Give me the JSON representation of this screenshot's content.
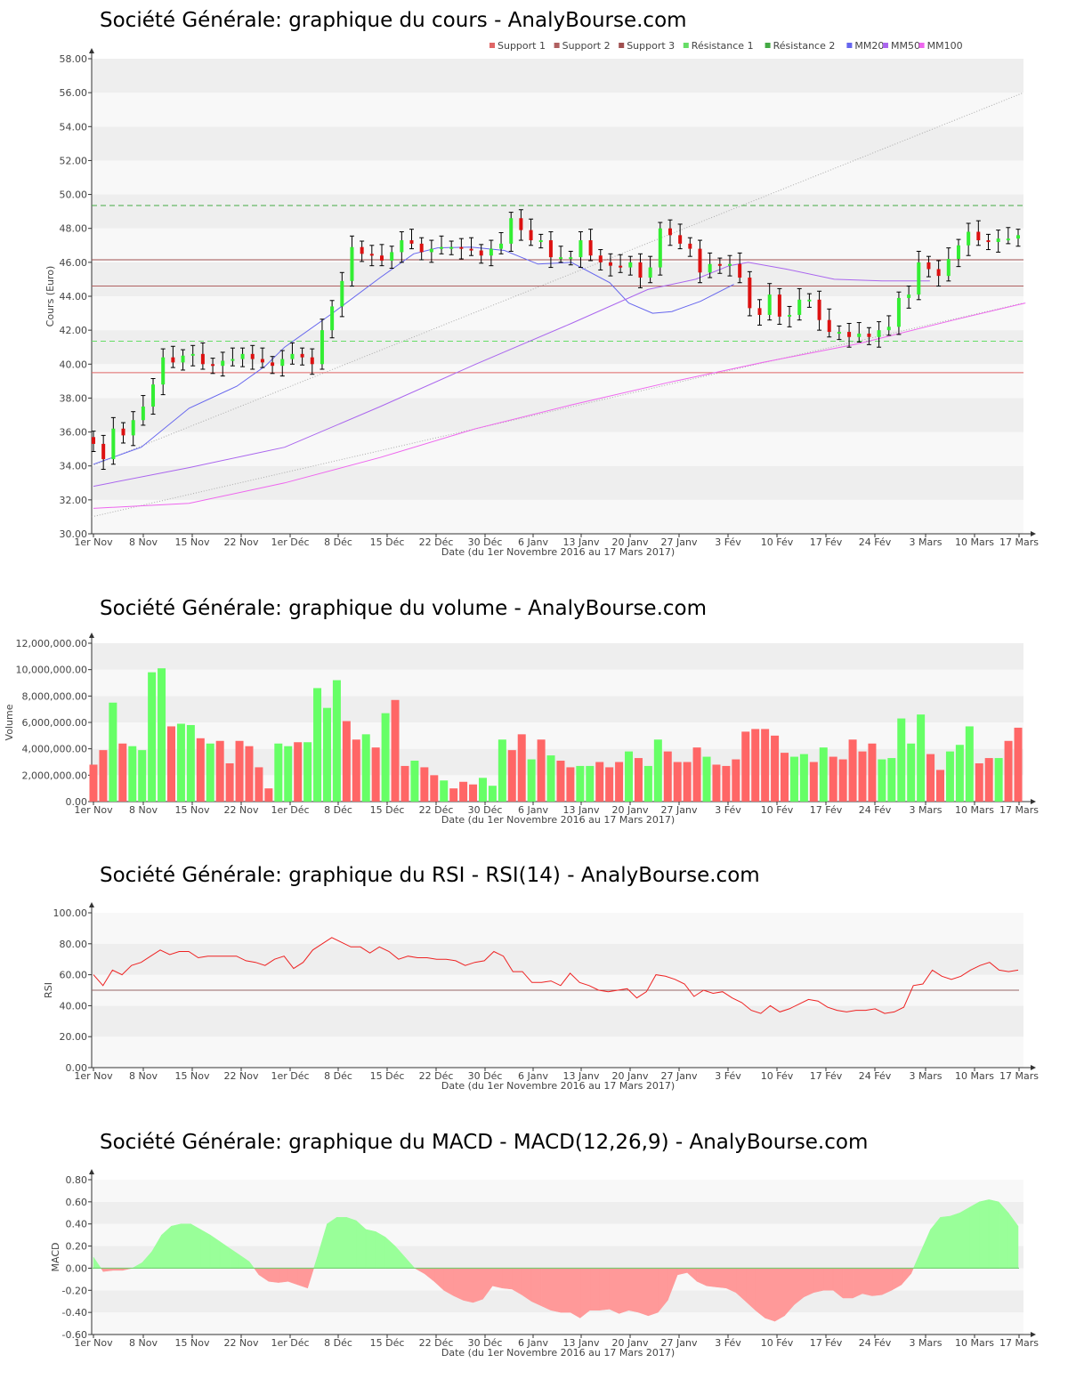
{
  "x_axis": {
    "tick_labels": [
      "1er Nov",
      "8 Nov",
      "15 Nov",
      "22 Nov",
      "1er Déc",
      "8 Déc",
      "15 Déc",
      "22 Déc",
      "30 Déc",
      "6 Janv",
      "13 Janv",
      "20 Janv",
      "27 Janv",
      "3 Fév",
      "10 Fév",
      "17 Fév",
      "24 Fév",
      "3 Mars",
      "10 Mars",
      "17 Mars"
    ],
    "label": "Date (du 1er Novembre 2016 au 17 Mars 2017)"
  },
  "chart_data": [
    {
      "type": "candlestick",
      "title": "Société Générale: graphique du cours - AnalyBourse.com",
      "ylabel": "Cours (Euro)",
      "ylim": [
        30,
        58
      ],
      "yticks": [
        "30.00",
        "32.00",
        "34.00",
        "36.00",
        "38.00",
        "40.00",
        "42.00",
        "44.00",
        "46.00",
        "48.00",
        "50.00",
        "52.00",
        "54.00",
        "56.00",
        "58.00"
      ],
      "legend": [
        {
          "name": "Support 1",
          "color": "#e06666"
        },
        {
          "name": "Support 2",
          "color": "#b06060"
        },
        {
          "name": "Support 3",
          "color": "#a05050"
        },
        {
          "name": "Résistance 1",
          "color": "#66dd66"
        },
        {
          "name": "Résistance 2",
          "color": "#44aa44"
        },
        {
          "name": "MM20",
          "color": "#6666ee"
        },
        {
          "name": "MM50",
          "color": "#aa66ee"
        },
        {
          "name": "MM100",
          "color": "#ee66ee"
        }
      ],
      "levels": {
        "support_1": 39.5,
        "support_2": 44.6,
        "support_3": 46.15,
        "resistance_1": 41.35,
        "resistance_2": 49.35
      },
      "trend_lines": [
        [
          34.0,
          56.0
        ],
        [
          31.0,
          43.6
        ]
      ],
      "closes": [
        35.3,
        34.4,
        36.2,
        35.8,
        36.7,
        37.5,
        38.8,
        40.4,
        40.1,
        40.5,
        40.6,
        40.0,
        39.9,
        40.2,
        40.3,
        40.6,
        40.3,
        40.1,
        39.9,
        40.3,
        40.6,
        40.4,
        40.0,
        42.0,
        43.4,
        44.9,
        46.9,
        46.5,
        46.4,
        46.1,
        46.6,
        47.3,
        47.1,
        46.6,
        46.8,
        46.9,
        46.9,
        46.8,
        46.7,
        46.4,
        46.8,
        47.1,
        48.6,
        47.9,
        47.3,
        47.3,
        46.3,
        46.3,
        46.3,
        47.3,
        46.4,
        46.0,
        45.8,
        45.7,
        46.0,
        45.1,
        45.7,
        48.0,
        47.6,
        47.1,
        46.8,
        45.4,
        45.9,
        45.8,
        45.9,
        45.1,
        43.3,
        42.9,
        44.1,
        42.8,
        42.9,
        43.8,
        43.8,
        42.6,
        41.9,
        41.9,
        41.6,
        41.8,
        41.6,
        42.0,
        42.2,
        43.9,
        44.1,
        46.0,
        45.6,
        45.2,
        46.2,
        47.0,
        47.8,
        47.3,
        47.2,
        47.4,
        47.4,
        47.6
      ],
      "ma": {
        "mm20": [
          [
            0,
            34.1
          ],
          [
            10,
            35.1
          ],
          [
            20,
            37.4
          ],
          [
            30,
            38.7
          ],
          [
            36,
            39.9
          ],
          [
            40,
            41.0
          ],
          [
            50,
            43.0
          ],
          [
            60,
            45.1
          ],
          [
            67,
            46.5
          ],
          [
            72,
            46.85
          ],
          [
            79,
            46.9
          ],
          [
            86,
            46.7
          ],
          [
            93,
            45.9
          ],
          [
            100,
            46.0
          ],
          [
            108,
            44.8
          ],
          [
            112,
            43.6
          ],
          [
            117,
            43.0
          ],
          [
            121,
            43.1
          ],
          [
            127,
            43.7
          ],
          [
            134,
            44.7
          ]
        ],
        "mm50": [
          [
            0,
            32.8
          ],
          [
            20,
            33.9
          ],
          [
            40,
            35.1
          ],
          [
            60,
            37.5
          ],
          [
            80,
            40.0
          ],
          [
            100,
            42.4
          ],
          [
            116,
            44.4
          ],
          [
            126,
            45.0
          ],
          [
            133,
            45.8
          ],
          [
            137,
            46.0
          ],
          [
            145,
            45.6
          ],
          [
            155,
            45.0
          ],
          [
            165,
            44.9
          ],
          [
            175,
            44.9
          ]
        ],
        "mm100": [
          [
            0,
            31.5
          ],
          [
            20,
            31.8
          ],
          [
            40,
            33.0
          ],
          [
            60,
            34.5
          ],
          [
            80,
            36.2
          ],
          [
            100,
            37.6
          ],
          [
            120,
            38.9
          ],
          [
            140,
            40.1
          ],
          [
            160,
            41.2
          ],
          [
            180,
            42.6
          ],
          [
            195,
            43.6
          ]
        ]
      }
    },
    {
      "type": "bar",
      "title": "Société Générale: graphique du volume - AnalyBourse.com",
      "ylabel": "Volume",
      "ylim": [
        0,
        12000000
      ],
      "yticks": [
        "0.00",
        "2,000,000.00",
        "4,000,000.00",
        "6,000,000.00",
        "8,000,000.00",
        "10,000,000.00",
        "12,000,000.00"
      ],
      "values": [
        2800000,
        3900000,
        7500000,
        4400000,
        4200000,
        3900000,
        9800000,
        10100000,
        5700000,
        5900000,
        5800000,
        4800000,
        4400000,
        4600000,
        2900000,
        4600000,
        4200000,
        2600000,
        1000000,
        4400000,
        4200000,
        4500000,
        4500000,
        8600000,
        7100000,
        9200000,
        6100000,
        4700000,
        5100000,
        4100000,
        6700000,
        7700000,
        2700000,
        3100000,
        2600000,
        2000000,
        1600000,
        1000000,
        1500000,
        1300000,
        1800000,
        1200000,
        4700000,
        3900000,
        5100000,
        3200000,
        4700000,
        3500000,
        3100000,
        2600000,
        2700000,
        2700000,
        3000000,
        2600000,
        3000000,
        3800000,
        3300000,
        2700000,
        4700000,
        3800000,
        3000000,
        3000000,
        4100000,
        3400000,
        2800000,
        2700000,
        3200000,
        5300000,
        5500000,
        5500000,
        5000000,
        3700000,
        3400000,
        3600000,
        3000000,
        4100000,
        3400000,
        3200000,
        4700000,
        3800000,
        4400000,
        3200000,
        3300000,
        6300000,
        4400000,
        6600000,
        3600000,
        2400000,
        3800000,
        4300000,
        5700000,
        2900000,
        3300000,
        3300000,
        4600000,
        5600000
      ],
      "colors": "r r g r g g g g r g g r g r r r r r r g g r g g g g r r g r g r r g r r g r r r g g g r r g r g r r g g r r r g r g g r r r r g r r r r r r r r g g r g r r r r r g g g g g r r g g g r r g r"
    },
    {
      "type": "line",
      "title": "Société Générale: graphique du RSI - RSI(14) - AnalyBourse.com",
      "ylabel": "RSI",
      "ylim": [
        0,
        100
      ],
      "yticks": [
        "0.00",
        "20.00",
        "40.00",
        "60.00",
        "80.00",
        "100.00"
      ],
      "reference": 50,
      "values": [
        60,
        53,
        63,
        60,
        66,
        68,
        72,
        76,
        73,
        75,
        75,
        71,
        72,
        72,
        72,
        72,
        69,
        68,
        66,
        70,
        72,
        64,
        68,
        76,
        80,
        84,
        81,
        78,
        78,
        74,
        78,
        75,
        70,
        72,
        71,
        71,
        70,
        70,
        69,
        66,
        68,
        69,
        75,
        72,
        62,
        62,
        55,
        55,
        56,
        53,
        61,
        55,
        53,
        50,
        49,
        50,
        51,
        45,
        49,
        60,
        59,
        57,
        54,
        46,
        50,
        48,
        49,
        45,
        42,
        37,
        35,
        40,
        36,
        38,
        41,
        44,
        43,
        39,
        37,
        36,
        37,
        37,
        38,
        35,
        36,
        39,
        53,
        54,
        63,
        59,
        57,
        59,
        63,
        66,
        68,
        63,
        62,
        63
      ]
    },
    {
      "type": "area",
      "title": "Société Générale: graphique du MACD - MACD(12,26,9) - AnalyBourse.com",
      "ylabel": "MACD",
      "ylim": [
        -0.6,
        0.8
      ],
      "yticks": [
        "-0.60",
        "-0.40",
        "-0.20",
        "0.00",
        "0.20",
        "0.40",
        "0.60",
        "0.80"
      ],
      "values": [
        0.1,
        -0.03,
        -0.02,
        -0.02,
        0.0,
        0.05,
        0.15,
        0.3,
        0.38,
        0.4,
        0.4,
        0.35,
        0.3,
        0.24,
        0.18,
        0.12,
        0.06,
        -0.06,
        -0.12,
        -0.13,
        -0.12,
        -0.15,
        -0.18,
        0.1,
        0.4,
        0.46,
        0.46,
        0.43,
        0.35,
        0.33,
        0.28,
        0.2,
        0.1,
        0.0,
        -0.05,
        -0.12,
        -0.2,
        -0.25,
        -0.29,
        -0.31,
        -0.28,
        -0.16,
        -0.18,
        -0.19,
        -0.24,
        -0.3,
        -0.34,
        -0.38,
        -0.4,
        -0.4,
        -0.45,
        -0.38,
        -0.38,
        -0.37,
        -0.41,
        -0.38,
        -0.4,
        -0.43,
        -0.4,
        -0.29,
        -0.06,
        -0.04,
        -0.12,
        -0.16,
        -0.17,
        -0.18,
        -0.22,
        -0.3,
        -0.38,
        -0.45,
        -0.48,
        -0.43,
        -0.33,
        -0.26,
        -0.22,
        -0.2,
        -0.2,
        -0.27,
        -0.27,
        -0.23,
        -0.25,
        -0.24,
        -0.2,
        -0.15,
        -0.05,
        0.15,
        0.35,
        0.46,
        0.47,
        0.5,
        0.55,
        0.6,
        0.62,
        0.6,
        0.5,
        0.38
      ]
    }
  ]
}
